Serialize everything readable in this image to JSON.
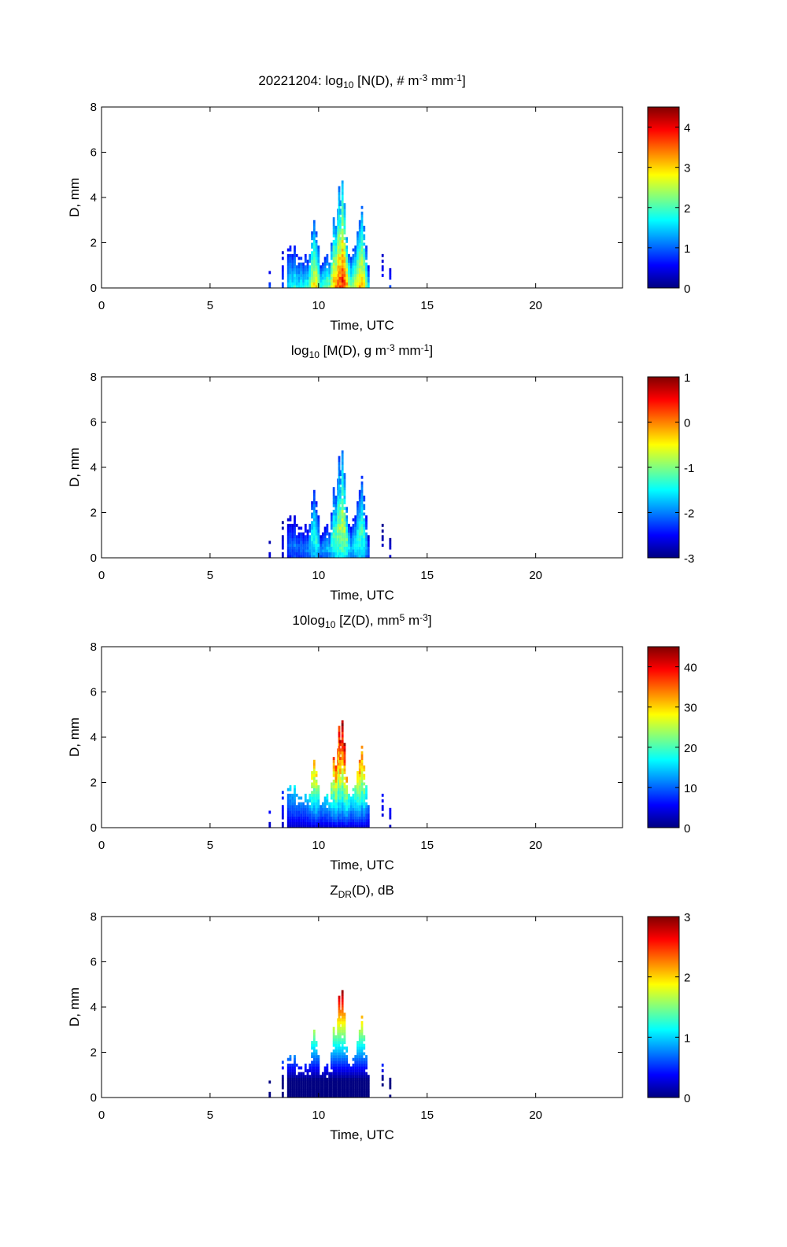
{
  "chart_data": {
    "type": "heatmap",
    "x_ticks": [
      0,
      5,
      10,
      15,
      20
    ],
    "y_ticks": [
      0,
      2,
      4,
      6,
      8
    ],
    "xlim": [
      0,
      24
    ],
    "ylim": [
      0,
      8
    ],
    "xlabel": "Time, UTC",
    "ylabel": "D, mm",
    "columns": [
      [
        7.75,
        0.9,
        0.2
      ],
      [
        8.35,
        1.7,
        0.2
      ],
      [
        8.6,
        1.8,
        0.35
      ],
      [
        8.7,
        1.9,
        0.4
      ],
      [
        8.8,
        1.6,
        0.4
      ],
      [
        8.9,
        1.9,
        0.45
      ],
      [
        9.0,
        1.5,
        0.4
      ],
      [
        9.1,
        1.4,
        0.4
      ],
      [
        9.2,
        1.6,
        0.45
      ],
      [
        9.3,
        1.3,
        0.4
      ],
      [
        9.4,
        1.5,
        0.45
      ],
      [
        9.5,
        1.3,
        0.45
      ],
      [
        9.6,
        1.8,
        0.55
      ],
      [
        9.7,
        2.6,
        0.65
      ],
      [
        9.8,
        3.1,
        0.7
      ],
      [
        9.9,
        2.5,
        0.7
      ],
      [
        10.0,
        1.9,
        0.6
      ],
      [
        10.1,
        1.1,
        0.45
      ],
      [
        10.2,
        1.2,
        0.5
      ],
      [
        10.3,
        1.4,
        0.5
      ],
      [
        10.4,
        1.6,
        0.55
      ],
      [
        10.5,
        1.3,
        0.55
      ],
      [
        10.6,
        2.1,
        0.7
      ],
      [
        10.7,
        3.2,
        0.75
      ],
      [
        10.8,
        2.8,
        0.8
      ],
      [
        10.9,
        3.6,
        0.85
      ],
      [
        10.95,
        4.5,
        0.85
      ],
      [
        11.0,
        3.9,
        0.9
      ],
      [
        11.1,
        4.9,
        0.95
      ],
      [
        11.2,
        3.8,
        0.9
      ],
      [
        11.3,
        2.4,
        0.8
      ],
      [
        11.4,
        1.6,
        0.65
      ],
      [
        11.5,
        1.4,
        0.55
      ],
      [
        11.6,
        1.8,
        0.6
      ],
      [
        11.7,
        1.9,
        0.65
      ],
      [
        11.8,
        2.6,
        0.7
      ],
      [
        11.9,
        3.0,
        0.75
      ],
      [
        12.0,
        3.7,
        0.75
      ],
      [
        12.1,
        2.9,
        0.7
      ],
      [
        12.2,
        2.0,
        0.55
      ],
      [
        12.3,
        1.0,
        0.4
      ],
      [
        12.95,
        1.5,
        0.15
      ],
      [
        13.3,
        1.0,
        0.2
      ]
    ],
    "panels": [
      {
        "key": "N",
        "title": [
          {
            "t": "20221204: log"
          },
          {
            "t": "10",
            "sub": true
          },
          {
            "t": " [N(D), # m"
          },
          {
            "t": "-3",
            "sup": true
          },
          {
            "t": " mm"
          },
          {
            "t": "-1",
            "sup": true
          },
          {
            "t": "]"
          }
        ],
        "clim": [
          0,
          4.5
        ],
        "cticks": [
          0,
          1,
          2,
          3,
          4
        ]
      },
      {
        "key": "M",
        "title": [
          {
            "t": "log"
          },
          {
            "t": "10",
            "sub": true
          },
          {
            "t": " [M(D), g m"
          },
          {
            "t": "-3",
            "sup": true
          },
          {
            "t": " mm"
          },
          {
            "t": "-1",
            "sup": true
          },
          {
            "t": "]"
          }
        ],
        "clim": [
          -3,
          1
        ],
        "cticks": [
          -3,
          -2,
          -1,
          0,
          1
        ]
      },
      {
        "key": "Z",
        "title": [
          {
            "t": "10log"
          },
          {
            "t": "10",
            "sub": true
          },
          {
            "t": " [Z(D),  mm"
          },
          {
            "t": "5",
            "sup": true
          },
          {
            "t": " m"
          },
          {
            "t": "-3",
            "sup": true
          },
          {
            "t": "]"
          }
        ],
        "clim": [
          0,
          45
        ],
        "cticks": [
          0,
          10,
          20,
          30,
          40
        ]
      },
      {
        "key": "ZDR",
        "title": [
          {
            "t": "Z"
          },
          {
            "t": "DR",
            "sub": true
          },
          {
            "t": "(D), dB"
          }
        ],
        "clim": [
          0,
          3
        ],
        "cticks": [
          0,
          1,
          2,
          3
        ]
      }
    ]
  }
}
